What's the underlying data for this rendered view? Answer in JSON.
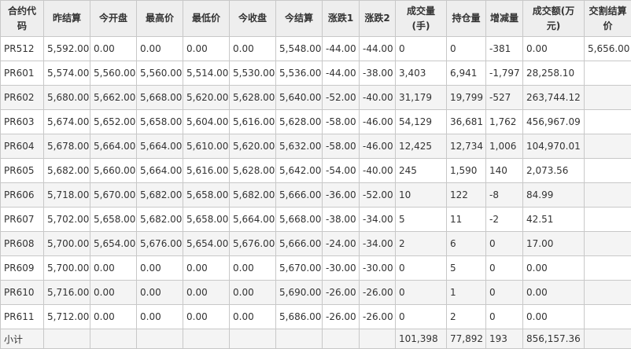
{
  "headers": [
    "合约代码",
    "昨结算",
    "今开盘",
    "最高价",
    "最低价",
    "今收盘",
    "今结算",
    "涨跌1",
    "涨跌2",
    "成交量(手)",
    "持仓量",
    "增减量",
    "成交额(万元)",
    "交割结算价"
  ],
  "rows": [
    [
      "PR512",
      "5,592.00",
      "0.00",
      "0.00",
      "0.00",
      "0.00",
      "5,548.00",
      "-44.00",
      "-44.00",
      "0",
      "0",
      "-381",
      "0.00",
      "5,656.00"
    ],
    [
      "PR601",
      "5,574.00",
      "5,560.00",
      "5,560.00",
      "5,514.00",
      "5,530.00",
      "5,536.00",
      "-44.00",
      "-38.00",
      "3,403",
      "6,941",
      "-1,797",
      "28,258.10",
      ""
    ],
    [
      "PR602",
      "5,680.00",
      "5,662.00",
      "5,668.00",
      "5,620.00",
      "5,628.00",
      "5,640.00",
      "-52.00",
      "-40.00",
      "31,179",
      "19,799",
      "-527",
      "263,744.12",
      ""
    ],
    [
      "PR603",
      "5,674.00",
      "5,652.00",
      "5,658.00",
      "5,604.00",
      "5,616.00",
      "5,628.00",
      "-58.00",
      "-46.00",
      "54,129",
      "36,681",
      "1,762",
      "456,967.09",
      ""
    ],
    [
      "PR604",
      "5,678.00",
      "5,664.00",
      "5,664.00",
      "5,610.00",
      "5,620.00",
      "5,632.00",
      "-58.00",
      "-46.00",
      "12,425",
      "12,734",
      "1,006",
      "104,970.01",
      ""
    ],
    [
      "PR605",
      "5,682.00",
      "5,660.00",
      "5,664.00",
      "5,616.00",
      "5,628.00",
      "5,642.00",
      "-54.00",
      "-40.00",
      "245",
      "1,590",
      "140",
      "2,073.56",
      ""
    ],
    [
      "PR606",
      "5,718.00",
      "5,670.00",
      "5,682.00",
      "5,658.00",
      "5,682.00",
      "5,666.00",
      "-36.00",
      "-52.00",
      "10",
      "122",
      "-8",
      "84.99",
      ""
    ],
    [
      "PR607",
      "5,702.00",
      "5,658.00",
      "5,682.00",
      "5,658.00",
      "5,664.00",
      "5,668.00",
      "-38.00",
      "-34.00",
      "5",
      "11",
      "-2",
      "42.51",
      ""
    ],
    [
      "PR608",
      "5,700.00",
      "5,654.00",
      "5,676.00",
      "5,654.00",
      "5,676.00",
      "5,666.00",
      "-24.00",
      "-34.00",
      "2",
      "6",
      "0",
      "17.00",
      ""
    ],
    [
      "PR609",
      "5,700.00",
      "0.00",
      "0.00",
      "0.00",
      "0.00",
      "5,670.00",
      "-30.00",
      "-30.00",
      "0",
      "5",
      "0",
      "0.00",
      ""
    ],
    [
      "PR610",
      "5,716.00",
      "0.00",
      "0.00",
      "0.00",
      "0.00",
      "5,690.00",
      "-26.00",
      "-26.00",
      "0",
      "1",
      "0",
      "0.00",
      ""
    ],
    [
      "PR611",
      "5,712.00",
      "0.00",
      "0.00",
      "0.00",
      "0.00",
      "5,686.00",
      "-26.00",
      "-26.00",
      "0",
      "2",
      "0",
      "0.00",
      ""
    ]
  ],
  "subtotal": [
    "小计",
    "",
    "",
    "",
    "",
    "",
    "",
    "",
    "",
    "101,398",
    "77,892",
    "193",
    "856,157.36",
    ""
  ]
}
